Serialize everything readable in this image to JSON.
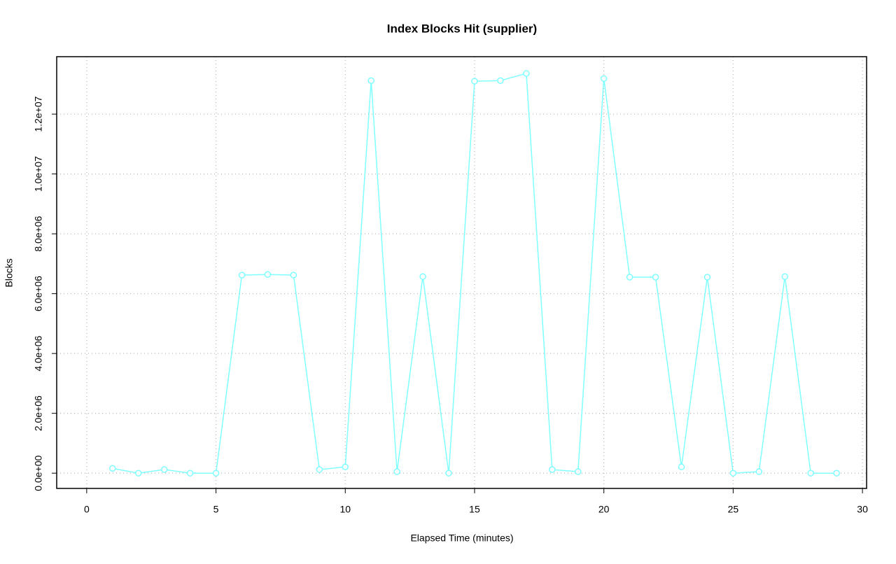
{
  "chart_data": {
    "type": "line",
    "title": "Index Blocks Hit (supplier)",
    "x_label": "Elapsed Time (minutes)",
    "y_label": "Blocks",
    "x": [
      1,
      2,
      3,
      4,
      5,
      6,
      7,
      8,
      9,
      10,
      11,
      12,
      13,
      14,
      15,
      16,
      17,
      18,
      19,
      20,
      21,
      22,
      23,
      24,
      25,
      26,
      27,
      28,
      29
    ],
    "values": [
      160000,
      0,
      120000,
      0,
      0,
      6620000,
      6640000,
      6620000,
      120000,
      210000,
      13120000,
      50000,
      6570000,
      0,
      13100000,
      13120000,
      13360000,
      120000,
      50000,
      13190000,
      6550000,
      6550000,
      210000,
      6550000,
      0,
      50000,
      6570000,
      0,
      0
    ],
    "color": "#80ffff",
    "xlim": [
      -1.16,
      30.16
    ],
    "ylim": [
      -510000,
      13920000
    ],
    "xticks": [
      0,
      5,
      10,
      15,
      20,
      25,
      30
    ],
    "yticks": [
      {
        "value": 0,
        "label": "0.0e+00"
      },
      {
        "value": 2000000,
        "label": "2.0e+06"
      },
      {
        "value": 4000000,
        "label": "4.0e+06"
      },
      {
        "value": 6000000,
        "label": "6.0e+06"
      },
      {
        "value": 8000000,
        "label": "8.0e+06"
      },
      {
        "value": 10000000,
        "label": "1.0e+07"
      },
      {
        "value": 12000000,
        "label": "1.2e+07"
      }
    ],
    "grid": true
  }
}
